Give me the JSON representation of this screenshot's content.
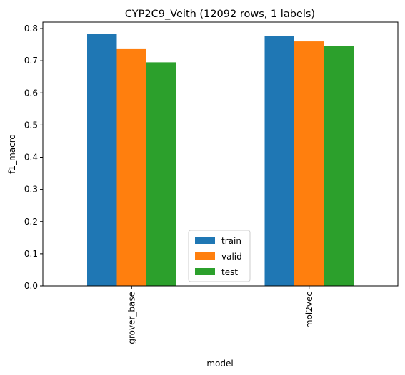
{
  "chart_data": {
    "type": "bar",
    "title": "CYP2C9_Veith (12092 rows, 1 labels)",
    "xlabel": "model",
    "ylabel": "f1_macro",
    "categories": [
      "grover_base",
      "mol2vec"
    ],
    "series": [
      {
        "name": "train",
        "color": "#1f77b4",
        "values": [
          0.784,
          0.776
        ]
      },
      {
        "name": "valid",
        "color": "#ff7f0e",
        "values": [
          0.736,
          0.76
        ]
      },
      {
        "name": "test",
        "color": "#2ca02c",
        "values": [
          0.695,
          0.746
        ]
      }
    ],
    "ylim": [
      0,
      0.82
    ],
    "yticks": [
      "0.0",
      "0.1",
      "0.2",
      "0.3",
      "0.4",
      "0.5",
      "0.6",
      "0.7",
      "0.8"
    ],
    "grid": false,
    "legend_position": "lower-center"
  }
}
